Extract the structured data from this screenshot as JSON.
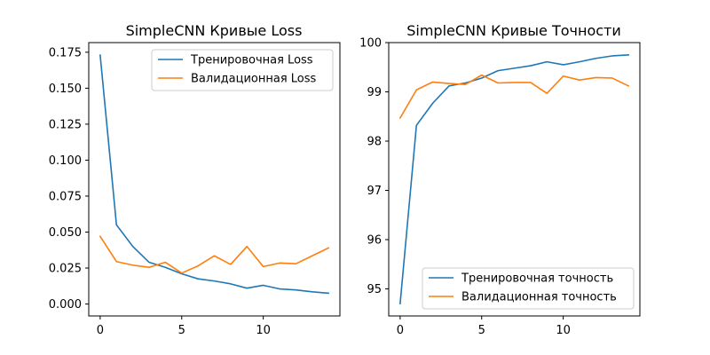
{
  "chart_data": [
    {
      "type": "line",
      "title": "SimpleCNN Кривые Loss",
      "xlabel": "",
      "ylabel": "",
      "xlim": [
        -0.7,
        14.7
      ],
      "ylim": [
        -0.0083,
        0.1817
      ],
      "xticks": [
        0,
        5,
        10
      ],
      "yticks": [
        0.0,
        0.025,
        0.05,
        0.075,
        0.1,
        0.125,
        0.15,
        0.175
      ],
      "ytick_labels": [
        "0.000",
        "0.025",
        "0.050",
        "0.075",
        "0.100",
        "0.125",
        "0.150",
        "0.175"
      ],
      "grid": false,
      "legend_position": "upper right",
      "x": [
        0,
        1,
        2,
        3,
        4,
        5,
        6,
        7,
        8,
        9,
        10,
        11,
        12,
        13,
        14
      ],
      "series": [
        {
          "name": "Тренировочная Loss",
          "color": "#1f77b4",
          "values": [
            0.173,
            0.055,
            0.04,
            0.029,
            0.0255,
            0.021,
            0.0175,
            0.016,
            0.014,
            0.011,
            0.013,
            0.0105,
            0.0098,
            0.0085,
            0.0075
          ]
        },
        {
          "name": "Валидационная Loss",
          "color": "#ff7f0e",
          "values": [
            0.047,
            0.0295,
            0.027,
            0.0255,
            0.029,
            0.0215,
            0.0265,
            0.0335,
            0.0275,
            0.04,
            0.026,
            0.0285,
            0.028,
            0.0335,
            0.039
          ]
        }
      ]
    },
    {
      "type": "line",
      "title": "SimpleCNN Кривые Точности",
      "xlabel": "",
      "ylabel": "",
      "xlim": [
        -0.7,
        14.7
      ],
      "ylim": [
        94.45,
        100.0
      ],
      "xticks": [
        0,
        5,
        10
      ],
      "yticks": [
        95,
        96,
        97,
        98,
        99,
        100
      ],
      "ytick_labels": [
        "95",
        "96",
        "97",
        "98",
        "99",
        "100"
      ],
      "grid": false,
      "legend_position": "lower right",
      "x": [
        0,
        1,
        2,
        3,
        4,
        5,
        6,
        7,
        8,
        9,
        10,
        11,
        12,
        13,
        14
      ],
      "series": [
        {
          "name": "Тренировочная точность",
          "color": "#1f77b4",
          "values": [
            94.7,
            98.32,
            98.77,
            99.12,
            99.18,
            99.28,
            99.43,
            99.48,
            99.53,
            99.61,
            99.55,
            99.61,
            99.68,
            99.73,
            99.75
          ]
        },
        {
          "name": "Валидационная точность",
          "color": "#ff7f0e",
          "values": [
            98.47,
            99.04,
            99.2,
            99.17,
            99.15,
            99.34,
            99.18,
            99.19,
            99.19,
            98.97,
            99.32,
            99.24,
            99.29,
            99.28,
            99.12
          ]
        }
      ]
    }
  ]
}
